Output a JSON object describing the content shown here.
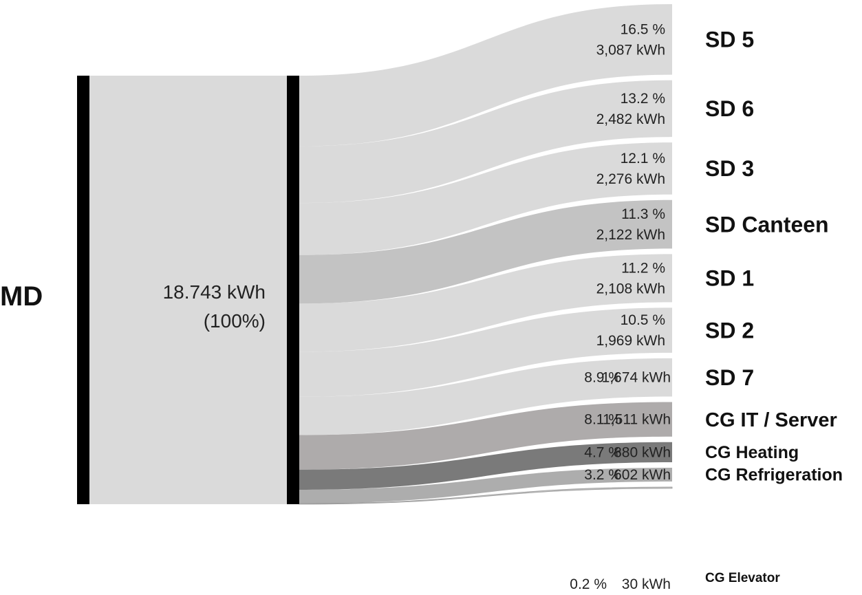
{
  "chart_data": {
    "type": "sankey",
    "source": {
      "name": "MD",
      "total_text": "18.743 kWh",
      "percent_text": "(100%)"
    },
    "flows": [
      {
        "name": "SD 5",
        "percent": 16.5,
        "percent_text": "16.5 %",
        "value_kwh": 3087,
        "value_text": "3,087 kWh",
        "color": "#dadada"
      },
      {
        "name": "SD 6",
        "percent": 13.2,
        "percent_text": "13.2 %",
        "value_kwh": 2482,
        "value_text": "2,482 kWh",
        "color": "#dadada"
      },
      {
        "name": "SD 3",
        "percent": 12.1,
        "percent_text": "12.1 %",
        "value_kwh": 2276,
        "value_text": "2,276 kWh",
        "color": "#dadada"
      },
      {
        "name": "SD Canteen",
        "percent": 11.3,
        "percent_text": "11.3 %",
        "value_kwh": 2122,
        "value_text": "2,122 kWh",
        "color": "#c3c3c3"
      },
      {
        "name": "SD 1",
        "percent": 11.2,
        "percent_text": "11.2 %",
        "value_kwh": 2108,
        "value_text": "2,108 kWh",
        "color": "#dadada"
      },
      {
        "name": "SD 2",
        "percent": 10.5,
        "percent_text": "10.5 %",
        "value_kwh": 1969,
        "value_text": "1,969 kWh",
        "color": "#dadada"
      },
      {
        "name": "SD 7",
        "percent": 8.9,
        "percent_text": "8.9 %",
        "value_kwh": 1674,
        "value_text": "1,674 kWh",
        "color": "#dadada"
      },
      {
        "name": "CG IT / Server",
        "percent": 8.1,
        "percent_text": "8.1 %",
        "value_kwh": 1511,
        "value_text": "1,511 kWh",
        "color": "#aeabab"
      },
      {
        "name": "CG Heating",
        "percent": 4.7,
        "percent_text": "4.7 %",
        "value_kwh": 880,
        "value_text": "880 kWh",
        "color": "#7a7a7a"
      },
      {
        "name": "CG Refrigeration",
        "percent": 3.2,
        "percent_text": "3.2 %",
        "value_kwh": 602,
        "value_text": "602 kWh",
        "color": "#adadad"
      },
      {
        "name": "CG Elevator",
        "percent": 0.2,
        "percent_text": "0.2 %",
        "value_kwh": 30,
        "value_text": "30 kWh",
        "color": "#c0c0c0"
      }
    ],
    "bar_color": "#000000",
    "band_color": "#dadada"
  }
}
